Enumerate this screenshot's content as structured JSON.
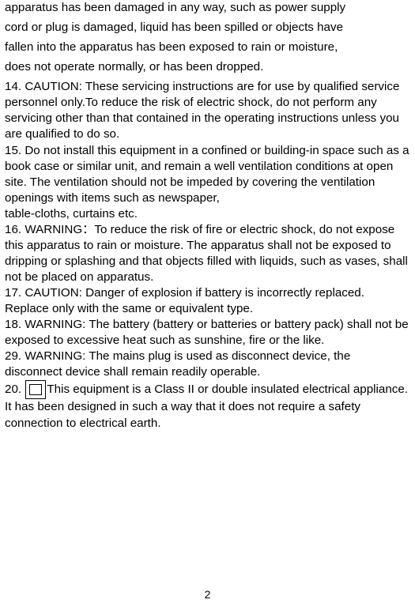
{
  "intro": {
    "l1": "apparatus has been damaged in any way, such as power supply",
    "l2": "cord or plug is damaged, liquid has been spilled or objects have",
    "l3": "fallen into the apparatus has been exposed to rain or moisture,",
    "l4": "does not operate normally, or has been dropped."
  },
  "item14": "14. CAUTION: These servicing instructions are for use by qualified service personnel only.To reduce the risk of electric shock, do not perform any servicing other than that contained in the operating instructions unless you are qualified to do so.",
  "item15a": "15. Do not install this equipment in a confined or building-in space such as a book case or similar unit, and remain a well ventilation conditions at open site. The ventilation should not be impeded by covering the ventilation openings with items such as newspaper,",
  "item15b": "table-cloths, curtains etc.",
  "item16": "16. WARNING：To reduce the risk of fire or electric shock, do not expose this  apparatus to rain or moisture. The apparatus shall not be exposed to dripping or  splashing and that objects filled with liquids, such as vases, shall not be placed  on apparatus.",
  "item17": "17. CAUTION: Danger of explosion if battery is incorrectly replaced. Replace only with the same or equivalent type.",
  "item18": "18. WARNING: The battery (battery or batteries or battery pack) shall not be exposed to excessive heat such as sunshine, fire or the like.",
  "item29": "29. WARNING: The mains plug is used as disconnect device, the disconnect device shall remain readily operable.",
  "item20_pre": "20. ",
  "item20_post": "This equipment is a Class II or double insulated electrical appliance. It has been designed in such a way that it does not require a safety connection to electrical earth.",
  "pageNumber": "2"
}
